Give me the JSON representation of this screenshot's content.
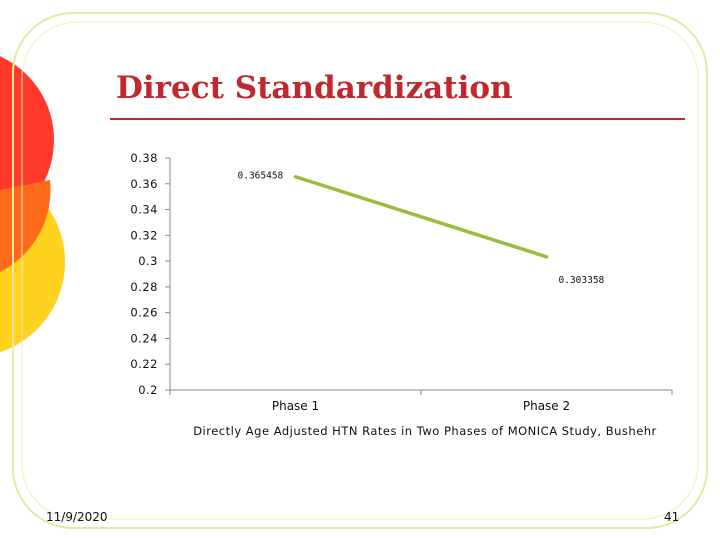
{
  "slide": {
    "title": "Direct Standardization",
    "date": "11/9/2020",
    "page_number": "41",
    "colors": {
      "title": "#c0282d",
      "line": "#9bbb3a",
      "frame": "#e8e6a0",
      "circle_red": "#ff3a2a",
      "circle_yellow": "#ffd21e"
    }
  },
  "chart_data": {
    "type": "line",
    "categories": [
      "Phase 1",
      "Phase 2"
    ],
    "series": [
      {
        "values": [
          0.365458,
          0.303358
        ]
      }
    ],
    "data_labels": [
      "0.365458",
      "0.303358"
    ],
    "y_ticks": [
      "0.38",
      "0.36",
      "0.34",
      "0.32",
      "0.3",
      "0.28",
      "0.26",
      "0.24",
      "0.22",
      "0.2"
    ],
    "ylim": [
      0.2,
      0.38
    ],
    "caption": "Directly Age Adjusted HTN Rates in Two Phases of MONICA Study, Bushehr",
    "grid": false,
    "legend": "none"
  }
}
